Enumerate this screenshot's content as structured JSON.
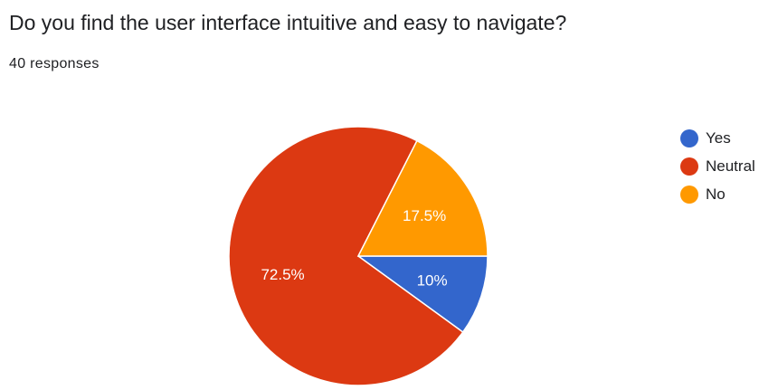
{
  "header": {
    "title": "Do you find the user interface intuitive and easy to navigate?",
    "responses": "40 responses"
  },
  "chart_data": {
    "type": "pie",
    "legend_position": "right",
    "slices": [
      {
        "label": "Yes",
        "value": 10,
        "display": "10%",
        "color": "#3366cc"
      },
      {
        "label": "Neutral",
        "value": 72.5,
        "display": "72.5%",
        "color": "#dc3912"
      },
      {
        "label": "No",
        "value": 17.5,
        "display": "17.5%",
        "color": "#ff9900"
      }
    ]
  }
}
